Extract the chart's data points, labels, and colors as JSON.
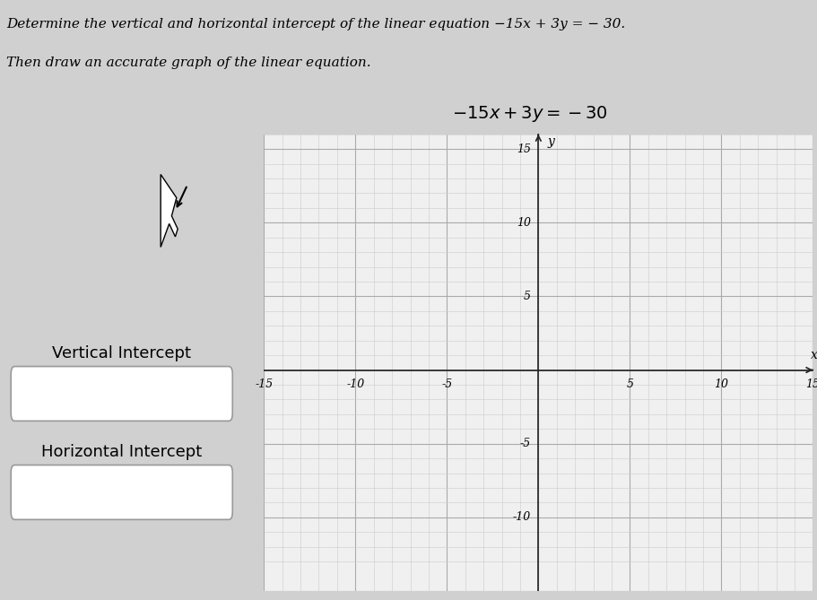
{
  "title_text": "Determine the vertical and horizontal intercept of the linear equation −15x + 3y = − 30.",
  "title_text2": "Then draw an accurate graph of the linear equation.",
  "equation_display": "−15x + 3y = − 30",
  "left_panel_label1": "Vertical Intercept",
  "left_panel_label2": "Horizontal Intercept",
  "xmin": -15,
  "xmax": 15,
  "ymin": -13,
  "ymax": 16,
  "xtick_vals": [
    -15,
    -10,
    -5,
    5,
    10,
    15
  ],
  "ytick_vals": [
    -10,
    -5,
    5,
    10,
    15
  ],
  "xlabel": "x",
  "ylabel": "y",
  "grid_major_color": "#aaaaaa",
  "grid_minor_color": "#cccccc",
  "axis_color": "#222222",
  "graph_bg": "#f0f0f0",
  "page_bg": "#d0d0d0",
  "top_bar_bg": "#ffffff",
  "left_panel_bg": "#d8d8d8",
  "box_bg": "#ffffff",
  "box_edge": "#999999",
  "title_fontsize": 11,
  "equation_fontsize": 14,
  "tick_fontsize": 9,
  "label_fontsize": 13
}
